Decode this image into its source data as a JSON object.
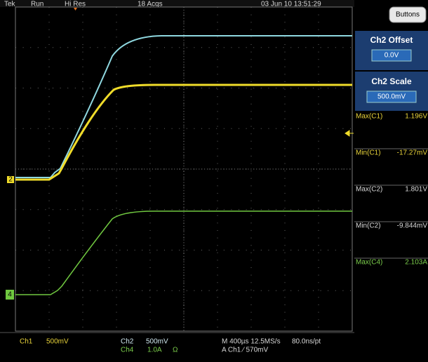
{
  "status_bar": {
    "brand": "Tek",
    "mode": "Run",
    "acquisition": "Hi Res",
    "count": "18 Acqs",
    "timestamp": "03 Jun 10 13:51:29"
  },
  "buttons_label": "Buttons",
  "panels": [
    {
      "title": "Ch2 Offset",
      "value": "0.0V"
    },
    {
      "title": "Ch2 Scale",
      "value": "500.0mV"
    }
  ],
  "measurements": [
    {
      "label": "Max(C1)",
      "value": "1.196V"
    },
    {
      "label": "Min(C1)",
      "value": "-17.27mV"
    },
    {
      "label": "Max(C2)",
      "value": "1.801V"
    },
    {
      "label": "Min(C2)",
      "value": "-9.844mV"
    },
    {
      "label": "Max(C4)",
      "value": "2.103A"
    }
  ],
  "markers": {
    "ch2": "2",
    "ch4": "4"
  },
  "footer": {
    "ch1_name": "Ch1",
    "ch1_scale": "500mV",
    "ch2_name": "Ch2",
    "ch2_scale": "500mV",
    "ch4_name": "Ch4",
    "ch4_scale": "1.0A",
    "ch4_unit": "Ω",
    "timebase": "M 400µs 12.5MS/s",
    "resolution": "80.0ns/pt",
    "trigger": "A Ch1 ⁄ 570mV"
  }
}
